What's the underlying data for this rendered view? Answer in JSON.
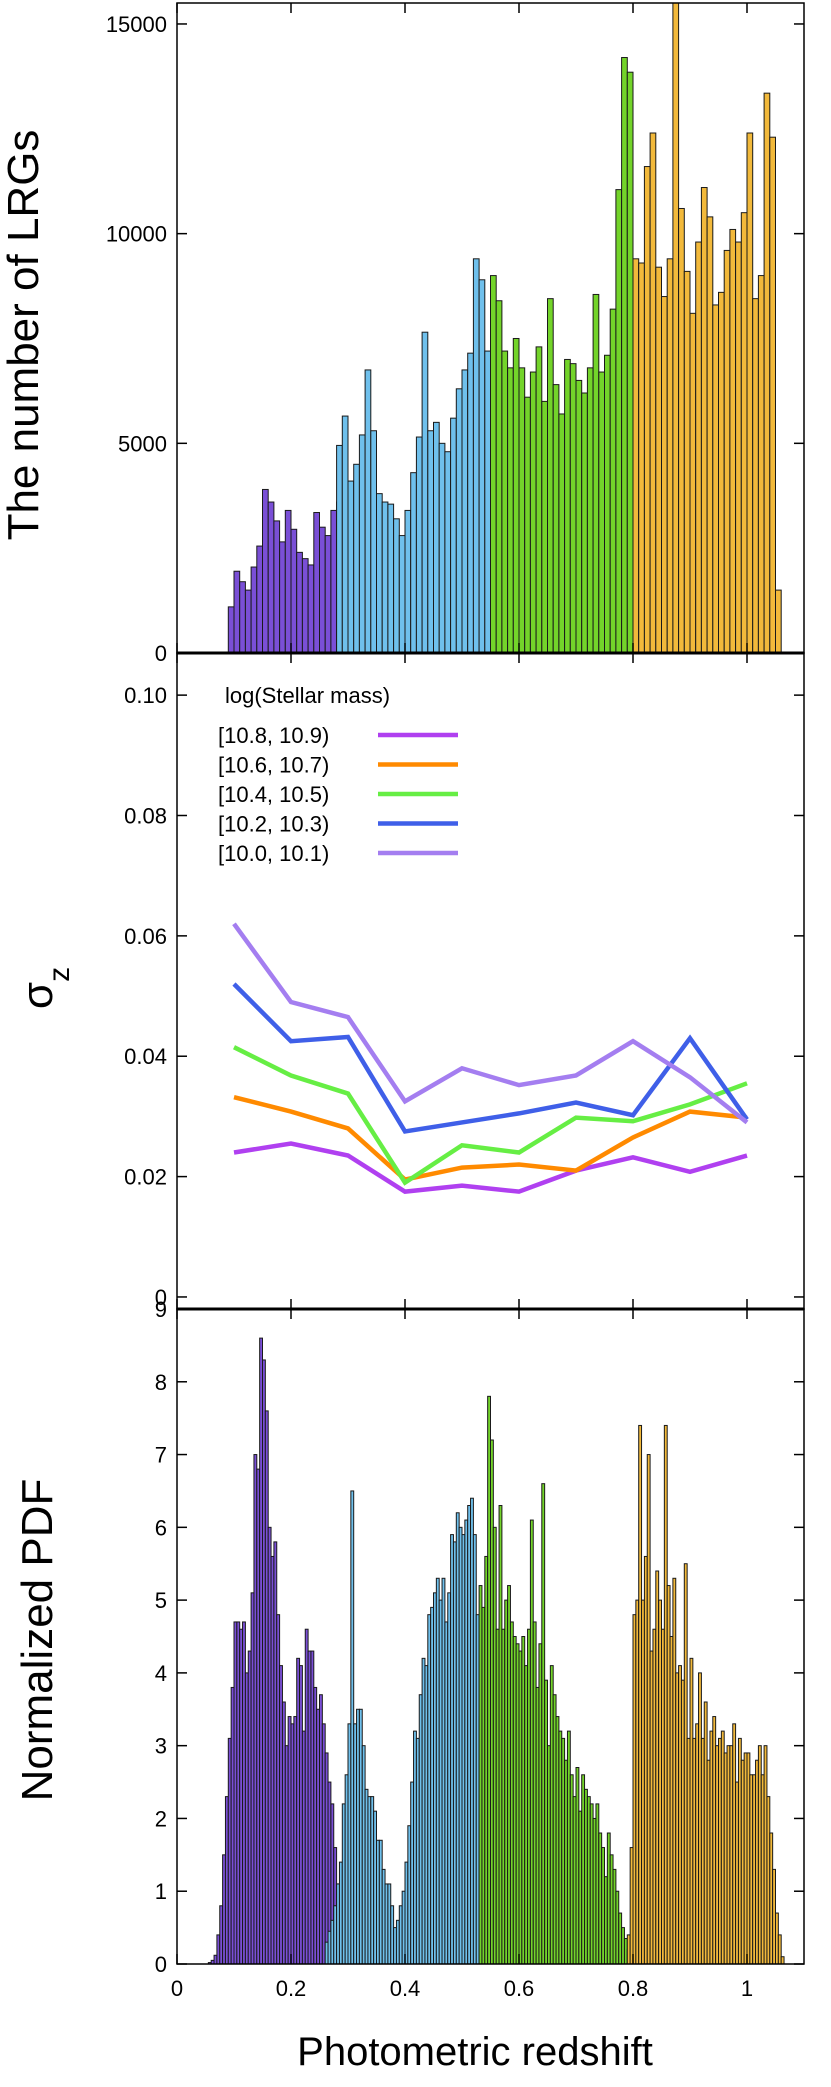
{
  "chart_data": [
    {
      "type": "bar",
      "title": "",
      "xlabel": "",
      "ylabel": "The number of LRGs",
      "xlim": [
        0,
        1.1
      ],
      "ylim": [
        0,
        15500
      ],
      "yticks": [
        0,
        5000,
        10000,
        15000
      ],
      "ytick_labels": [
        "0",
        "5000",
        "10000",
        "15000"
      ],
      "bin_width": 0.01,
      "series": [
        {
          "name": "purple",
          "color": "#7a4fd6",
          "x": [
            0.095,
            0.105,
            0.115,
            0.125,
            0.135,
            0.145,
            0.155,
            0.165,
            0.175,
            0.185,
            0.195,
            0.205,
            0.215,
            0.225,
            0.235,
            0.245,
            0.255,
            0.265,
            0.275,
            0.285,
            0.295
          ],
          "values": [
            1100,
            1950,
            1700,
            1500,
            2050,
            2550,
            3900,
            3600,
            3150,
            2650,
            3400,
            2950,
            2400,
            2250,
            2100,
            3350,
            3000,
            2800,
            3400,
            3600,
            3200
          ]
        },
        {
          "name": "blue",
          "color": "#6fc0ec",
          "x": [
            0.305,
            0.315,
            0.325,
            0.335,
            0.345,
            0.355,
            0.365,
            0.375,
            0.385,
            0.395,
            0.405,
            0.415,
            0.425,
            0.435,
            0.445,
            0.455,
            0.465,
            0.475,
            0.485,
            0.495,
            0.505,
            0.515,
            0.525,
            0.535,
            0.545
          ],
          "values": [
            4100,
            4500,
            5200,
            6750,
            5300,
            3800,
            3600,
            3550,
            3200,
            2800,
            3400,
            4300,
            5150,
            7650,
            5300,
            5500,
            5000,
            4800,
            5600,
            6300,
            6750,
            7150,
            9400,
            8900,
            7200
          ],
          "extra_bars": {
            "x": [
              0.285,
              0.295
            ],
            "values": [
              4950,
              5650
            ]
          }
        },
        {
          "name": "green",
          "color": "#73d42a",
          "x": [
            0.555,
            0.565,
            0.575,
            0.585,
            0.595,
            0.605,
            0.615,
            0.625,
            0.635,
            0.645,
            0.655,
            0.665,
            0.675,
            0.685,
            0.695,
            0.705,
            0.715,
            0.725,
            0.735,
            0.745,
            0.755,
            0.765,
            0.775,
            0.785,
            0.795
          ],
          "values": [
            9000,
            8400,
            7200,
            6800,
            7500,
            6800,
            6100,
            6700,
            7300,
            6000,
            8450,
            6400,
            5700,
            7000,
            6900,
            6500,
            6200,
            6800,
            8550,
            6700,
            7100,
            8200,
            11050,
            14200,
            13850
          ]
        },
        {
          "name": "orange",
          "color": "#f2b93b",
          "x": [
            0.805,
            0.815,
            0.825,
            0.835,
            0.845,
            0.855,
            0.865,
            0.875,
            0.885,
            0.895,
            0.905,
            0.915,
            0.925,
            0.935,
            0.945,
            0.955,
            0.965,
            0.975,
            0.985,
            0.995,
            1.005,
            1.015,
            1.025,
            1.035,
            1.045,
            1.055
          ],
          "values": [
            9400,
            9300,
            11600,
            12400,
            9200,
            8500,
            9400,
            15500,
            10600,
            9100,
            8100,
            9800,
            11100,
            10400,
            8300,
            8600,
            9600,
            10100,
            9800,
            10500,
            12400,
            8450,
            9000,
            13350,
            12300,
            1500
          ]
        }
      ]
    },
    {
      "type": "line",
      "title": "",
      "xlabel": "",
      "ylabel": "σz",
      "xlim": [
        0,
        1.1
      ],
      "ylim": [
        -0.002,
        0.107
      ],
      "yticks": [
        0,
        0.02,
        0.04,
        0.06,
        0.08,
        0.1
      ],
      "ytick_labels": [
        "0",
        "0.02",
        "0.04",
        "0.06",
        "0.08",
        "0.10"
      ],
      "legend_title": "log(Stellar mass)",
      "legend_position": "top-left",
      "x": [
        0.1,
        0.2,
        0.3,
        0.4,
        0.5,
        0.6,
        0.7,
        0.8,
        0.9,
        1.0
      ],
      "series": [
        {
          "name": "[10.8, 10.9)",
          "color": "#b040f0",
          "values": [
            0.024,
            0.0255,
            0.0235,
            0.0175,
            0.0185,
            0.0175,
            0.021,
            0.0232,
            0.0208,
            0.0235
          ]
        },
        {
          "name": "[10.6, 10.7)",
          "color": "#ff8a00",
          "values": [
            0.0332,
            0.0308,
            0.028,
            0.0195,
            0.0215,
            0.022,
            0.021,
            0.0265,
            0.0308,
            0.0298
          ]
        },
        {
          "name": "[10.4, 10.5)",
          "color": "#66ee44",
          "values": [
            0.0415,
            0.0368,
            0.0338,
            0.019,
            0.0252,
            0.024,
            0.0298,
            0.0292,
            0.032,
            0.0355
          ]
        },
        {
          "name": "[10.2, 10.3)",
          "color": "#3f5fe8",
          "values": [
            0.052,
            0.0425,
            0.0432,
            0.0275,
            0.029,
            0.0305,
            0.0323,
            0.0302,
            0.043,
            0.0295
          ]
        },
        {
          "name": "[10.0, 10.1)",
          "color": "#a47ef0",
          "values": [
            0.062,
            0.049,
            0.0465,
            0.0325,
            0.038,
            0.0352,
            0.0368,
            0.0425,
            0.0365,
            0.029
          ]
        }
      ]
    },
    {
      "type": "bar",
      "title": "",
      "xlabel": "Photometric redshift",
      "ylabel": "Normalized PDF",
      "xlim": [
        0,
        1.1
      ],
      "ylim": [
        0,
        9
      ],
      "xticks": [
        0,
        0.2,
        0.4,
        0.6,
        0.8,
        1
      ],
      "xtick_labels": [
        "0",
        "0.2",
        "0.4",
        "0.6",
        "0.8",
        "1"
      ],
      "yticks": [
        0,
        1,
        2,
        3,
        4,
        5,
        6,
        7,
        8,
        9
      ],
      "ytick_labels": [
        "0",
        "1",
        "2",
        "3",
        "4",
        "5",
        "6",
        "7",
        "8",
        "9"
      ],
      "bin_width": 0.005,
      "series": [
        {
          "name": "purple",
          "color": "#7a4fd6",
          "x": [
            0.0575,
            0.0625,
            0.0675,
            0.0725,
            0.0775,
            0.0825,
            0.0875,
            0.0925,
            0.0975,
            0.1025,
            0.1075,
            0.1125,
            0.1175,
            0.1225,
            0.1275,
            0.1325,
            0.1375,
            0.1425,
            0.1475,
            0.1525,
            0.1575,
            0.1625,
            0.1675,
            0.1725,
            0.1775,
            0.1825,
            0.1875,
            0.1925,
            0.1975,
            0.2025,
            0.2075,
            0.2125,
            0.2175,
            0.2225,
            0.2275,
            0.2325,
            0.2375,
            0.2425,
            0.2475,
            0.2525,
            0.2575,
            0.2625,
            0.2675,
            0.2725,
            0.2775,
            0.2825,
            0.2875,
            0.2925,
            0.2975,
            0.3025
          ],
          "values": [
            0.02,
            0.05,
            0.12,
            0.4,
            0.8,
            1.5,
            2.3,
            3.1,
            3.8,
            4.7,
            4.7,
            4.6,
            4.7,
            4.0,
            4.3,
            5.1,
            7.0,
            6.8,
            8.6,
            8.3,
            7.6,
            6.0,
            5.6,
            5.8,
            4.8,
            4.1,
            3.6,
            3.0,
            3.4,
            3.3,
            3.4,
            4.2,
            4.1,
            3.2,
            4.6,
            4.3,
            4.3,
            3.8,
            3.5,
            3.7,
            3.3,
            2.9,
            2.5,
            2.2,
            1.6,
            1.1,
            0.6,
            0.3,
            0.15,
            0.05
          ]
        },
        {
          "name": "blue",
          "color": "#6fc0ec",
          "x": [
            0.2625,
            0.2675,
            0.2725,
            0.2775,
            0.2825,
            0.2875,
            0.2925,
            0.2975,
            0.3025,
            0.3075,
            0.3125,
            0.3175,
            0.3225,
            0.3275,
            0.3325,
            0.3375,
            0.3425,
            0.3475,
            0.3525,
            0.3575,
            0.3625,
            0.3675,
            0.3725,
            0.3775,
            0.3825,
            0.3875,
            0.3925,
            0.3975,
            0.4025,
            0.4075,
            0.4125,
            0.4175,
            0.4225,
            0.4275,
            0.4325,
            0.4375,
            0.4425,
            0.4475,
            0.4525,
            0.4575,
            0.4625,
            0.4675,
            0.4725,
            0.4775,
            0.4825,
            0.4875,
            0.4925,
            0.4975,
            0.5025,
            0.5075,
            0.5125,
            0.5175,
            0.5225,
            0.5275,
            0.5325,
            0.5375
          ],
          "values": [
            0.3,
            0.45,
            0.6,
            0.8,
            1.1,
            1.4,
            2.2,
            2.6,
            3.3,
            6.5,
            3.3,
            3.5,
            3.5,
            3.0,
            2.4,
            2.3,
            2.3,
            2.1,
            1.7,
            1.7,
            1.3,
            1.1,
            1.1,
            0.8,
            0.5,
            0.6,
            0.8,
            1.0,
            1.4,
            1.9,
            2.5,
            3.2,
            3.1,
            3.7,
            4.2,
            4.1,
            4.8,
            4.9,
            5.1,
            5.3,
            5.0,
            5.3,
            4.7,
            5.1,
            5.9,
            5.8,
            6.2,
            6.0,
            5.9,
            6.1,
            6.3,
            6.4,
            5.9,
            4.8,
            3.4,
            2.0
          ]
        },
        {
          "name": "green",
          "color": "#73d42a",
          "x": [
            0.5325,
            0.5375,
            0.5425,
            0.5475,
            0.5525,
            0.5575,
            0.5625,
            0.5675,
            0.5725,
            0.5775,
            0.5825,
            0.5875,
            0.5925,
            0.5975,
            0.6025,
            0.6075,
            0.6125,
            0.6175,
            0.6225,
            0.6275,
            0.6325,
            0.6375,
            0.6425,
            0.6475,
            0.6525,
            0.6575,
            0.6625,
            0.6675,
            0.6725,
            0.6775,
            0.6825,
            0.6875,
            0.6925,
            0.6975,
            0.7025,
            0.7075,
            0.7125,
            0.7175,
            0.7225,
            0.7275,
            0.7325,
            0.7375,
            0.7425,
            0.7475,
            0.7525,
            0.7575,
            0.7625,
            0.7675,
            0.7725,
            0.7775,
            0.7825,
            0.7875,
            0.7925,
            0.7975,
            0.8025
          ],
          "values": [
            5.2,
            4.9,
            5.6,
            7.8,
            7.2,
            6.0,
            4.6,
            6.3,
            4.6,
            5.0,
            5.2,
            4.7,
            4.5,
            4.4,
            4.3,
            4.5,
            4.1,
            4.6,
            6.1,
            4.7,
            3.8,
            4.4,
            6.6,
            3.9,
            3.0,
            4.1,
            3.7,
            3.4,
            3.2,
            3.1,
            2.8,
            3.2,
            2.6,
            2.3,
            2.7,
            2.1,
            2.6,
            2.4,
            2.3,
            2.2,
            2.0,
            2.2,
            1.8,
            1.6,
            1.2,
            1.8,
            1.5,
            1.3,
            1.0,
            0.7,
            0.5,
            0.35,
            0.2,
            0.1,
            0.05
          ]
        },
        {
          "name": "orange",
          "color": "#f2b93b",
          "x": [
            0.7925,
            0.7975,
            0.8025,
            0.8075,
            0.8125,
            0.8175,
            0.8225,
            0.8275,
            0.8325,
            0.8375,
            0.8425,
            0.8475,
            0.8525,
            0.8575,
            0.8625,
            0.8675,
            0.8725,
            0.8775,
            0.8825,
            0.8875,
            0.8925,
            0.8975,
            0.9025,
            0.9075,
            0.9125,
            0.9175,
            0.9225,
            0.9275,
            0.9325,
            0.9375,
            0.9425,
            0.9475,
            0.9525,
            0.9575,
            0.9625,
            0.9675,
            0.9725,
            0.9775,
            0.9825,
            0.9875,
            0.9925,
            0.9975,
            1.0025,
            1.0075,
            1.0125,
            1.0175,
            1.0225,
            1.0275,
            1.0325,
            1.0375,
            1.0425,
            1.0475,
            1.0525,
            1.0575,
            1.0625
          ],
          "values": [
            0.4,
            1.6,
            4.8,
            5.0,
            7.4,
            5.0,
            5.6,
            7.0,
            4.3,
            4.6,
            5.4,
            5.0,
            4.6,
            7.4,
            5.2,
            4.5,
            5.3,
            4.0,
            4.1,
            3.9,
            5.5,
            3.1,
            4.2,
            3.1,
            3.3,
            4.0,
            3.1,
            3.6,
            2.8,
            3.2,
            3.4,
            3.0,
            3.1,
            3.2,
            2.9,
            3.0,
            3.0,
            3.3,
            2.5,
            3.1,
            2.8,
            2.9,
            2.9,
            2.6,
            2.6,
            2.8,
            3.0,
            2.6,
            3.0,
            2.3,
            1.8,
            1.3,
            0.7,
            0.4,
            0.1
          ]
        }
      ]
    }
  ]
}
